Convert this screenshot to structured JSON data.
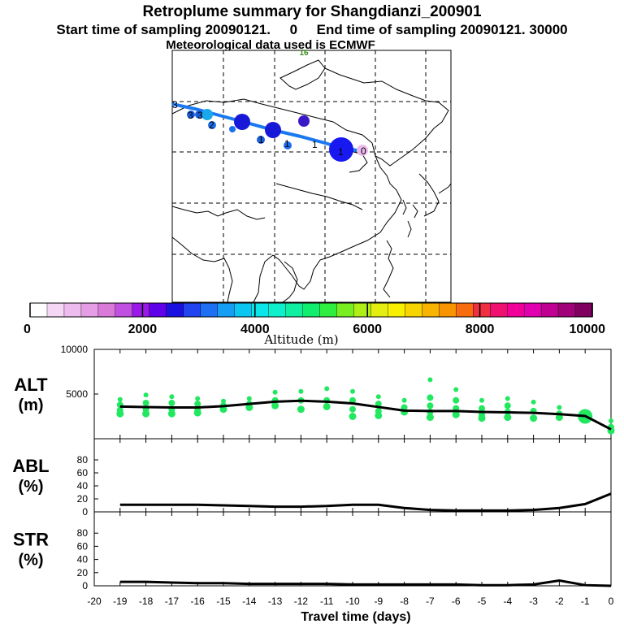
{
  "header": {
    "title": "Retroplume summary for Shangdianzi_200901",
    "subtitle": "Start time of sampling 20090121.     0     End time of sampling 20090121. 30000",
    "met_line": "Meteorological data used is ECMWF"
  },
  "map": {
    "map_label": "16",
    "trajectory_labels": [
      "0",
      "1",
      "1",
      "1",
      "1",
      "2",
      "3",
      "3",
      "3"
    ]
  },
  "colorbar": {
    "ticks": [
      "0",
      "2000",
      "4000",
      "6000",
      "8000",
      "10000"
    ],
    "label": "Altitude (m)",
    "colors": [
      "#ffffff",
      "#f5d6f5",
      "#eebbee",
      "#e59ee5",
      "#d97ad9",
      "#c050e0",
      "#9a18e8",
      "#5f00e8",
      "#1a10e0",
      "#2244f0",
      "#1f6ff5",
      "#169ef5",
      "#0ac6f0",
      "#0ae6ea",
      "#0ef0cc",
      "#0ef0a0",
      "#10ee70",
      "#30ee40",
      "#78ee20",
      "#b0ee18",
      "#e4ee10",
      "#f8f000",
      "#f8d400",
      "#f8b400",
      "#f89400",
      "#f86c10",
      "#f03040",
      "#f01070",
      "#f00098",
      "#e000b0",
      "#c00090",
      "#a00078",
      "#800060"
    ]
  },
  "chart_data": [
    {
      "type": "line",
      "panel": "ALT",
      "ylabel_top": "ALT",
      "ylabel_bottom": "(m)",
      "ylim": [
        0,
        10000
      ],
      "yticks": [
        "5000",
        "10000"
      ],
      "x": [
        -19,
        -18,
        -17,
        -16,
        -15,
        -14,
        -13,
        -12,
        -11,
        -10,
        -9,
        -8,
        -7,
        -6,
        -5,
        -4,
        -3,
        -2,
        -1,
        0
      ],
      "series": [
        {
          "name": "Mean altitude",
          "values": [
            3600,
            3550,
            3500,
            3500,
            3650,
            3900,
            4150,
            4250,
            4150,
            3950,
            3550,
            3150,
            3100,
            3100,
            3000,
            2950,
            2900,
            2750,
            2550,
            1050
          ]
        }
      ],
      "scatter": [
        {
          "x": -19,
          "values": [
            4400,
            3800,
            3200,
            2800
          ]
        },
        {
          "x": -18,
          "values": [
            4900,
            4000,
            3300,
            2800
          ]
        },
        {
          "x": -17,
          "values": [
            4700,
            4000,
            3300,
            2800
          ]
        },
        {
          "x": -16,
          "values": [
            4500,
            3900,
            3300,
            2900
          ]
        },
        {
          "x": -15,
          "values": [
            4200,
            3700,
            3300
          ]
        },
        {
          "x": -14,
          "values": [
            4500,
            3900,
            3500
          ]
        },
        {
          "x": -13,
          "values": [
            5200,
            4300,
            3700
          ]
        },
        {
          "x": -12,
          "values": [
            5300,
            4300,
            3300
          ]
        },
        {
          "x": -11,
          "values": [
            5600,
            4300,
            3600
          ]
        },
        {
          "x": -10,
          "values": [
            5300,
            4300,
            3300,
            2500
          ]
        },
        {
          "x": -9,
          "values": [
            4700,
            3900,
            3100,
            2600
          ]
        },
        {
          "x": -8,
          "values": [
            4300,
            3500,
            3000
          ]
        },
        {
          "x": -7,
          "values": [
            6600,
            4600,
            3700,
            3000,
            2400
          ]
        },
        {
          "x": -6,
          "values": [
            5500,
            4300,
            3400,
            2700
          ]
        },
        {
          "x": -5,
          "values": [
            4300,
            3400,
            2700,
            2300
          ]
        },
        {
          "x": -4,
          "values": [
            4500,
            3700,
            3000,
            2400
          ]
        },
        {
          "x": -3,
          "values": [
            4100,
            3100,
            2300
          ]
        },
        {
          "x": -2,
          "values": [
            3500,
            2800,
            2400
          ]
        },
        {
          "x": -1,
          "values": [
            2800,
            2400
          ]
        },
        {
          "x": 0,
          "values": [
            2000,
            1300,
            900
          ]
        }
      ]
    },
    {
      "type": "line",
      "panel": "ABL",
      "ylabel_top": "ABL",
      "ylabel_bottom": "(%)",
      "ylim": [
        0,
        100
      ],
      "yticks": [
        "0",
        "20",
        "40",
        "60",
        "80"
      ],
      "x": [
        -19,
        -18,
        -17,
        -16,
        -15,
        -14,
        -13,
        -12,
        -11,
        -10,
        -9,
        -8,
        -7,
        -6,
        -5,
        -4,
        -3,
        -2,
        -1,
        0
      ],
      "series": [
        {
          "name": "ABL fraction",
          "values": [
            11,
            11,
            11,
            11,
            10,
            9,
            8,
            8,
            9,
            11,
            11,
            6,
            3,
            2,
            2,
            2,
            3,
            6,
            12,
            28
          ]
        }
      ]
    },
    {
      "type": "line",
      "panel": "STR",
      "ylabel_top": "STR",
      "ylabel_bottom": "(%)",
      "ylim": [
        0,
        100
      ],
      "yticks": [
        "0",
        "20",
        "40",
        "60",
        "80"
      ],
      "x": [
        -19,
        -18,
        -17,
        -16,
        -15,
        -14,
        -13,
        -12,
        -11,
        -10,
        -9,
        -8,
        -7,
        -6,
        -5,
        -4,
        -3,
        -2,
        -1,
        0
      ],
      "series": [
        {
          "name": "Stratospheric fraction",
          "values": [
            6,
            6,
            5,
            4,
            4,
            3,
            3,
            3,
            3,
            2,
            2,
            2,
            2,
            2,
            1,
            1,
            2,
            8,
            1,
            0
          ]
        }
      ],
      "xlabel": "Travel time (days)",
      "xticks": [
        "-20",
        "-19",
        "-18",
        "-17",
        "-16",
        "-15",
        "-14",
        "-13",
        "-12",
        "-11",
        "-10",
        "-9",
        "-8",
        "-7",
        "-6",
        "-5",
        "-4",
        "-3",
        "-2",
        "-1",
        "0"
      ]
    }
  ]
}
